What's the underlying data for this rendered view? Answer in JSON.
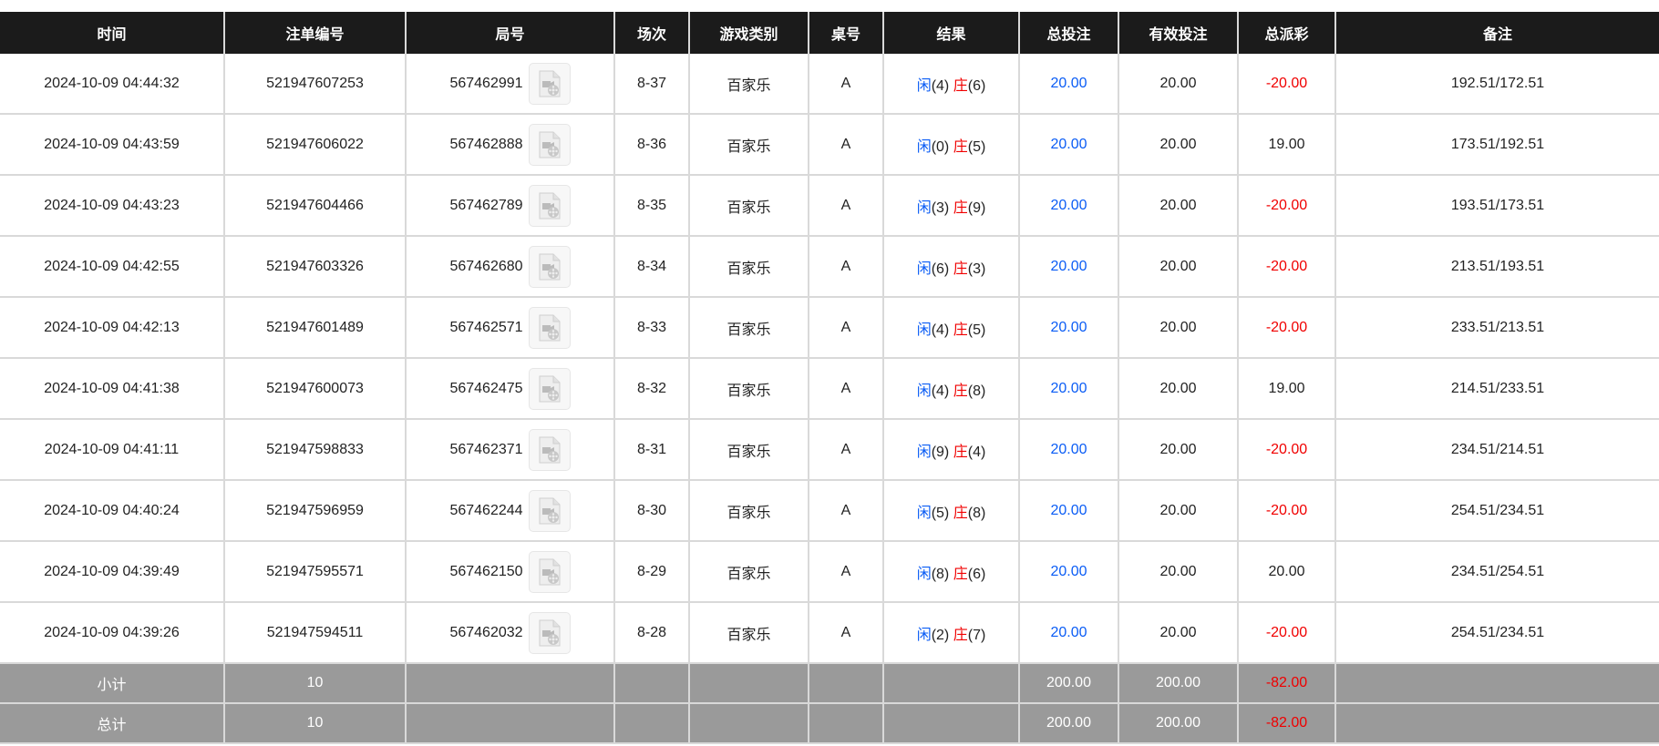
{
  "headers": [
    "时间",
    "注单编号",
    "局号",
    "场次",
    "游戏类别",
    "桌号",
    "结果",
    "总投注",
    "有效投注",
    "总派彩",
    "备注"
  ],
  "colors": {
    "player": "#0a5cf5",
    "banker": "#f00000",
    "negative": "#f00000",
    "header_bg": "#1b1b1b",
    "summary_bg": "#9a9a9a"
  },
  "result_labels": {
    "player": "闲",
    "banker": "庄"
  },
  "rows": [
    {
      "time": "2024-10-09 04:44:32",
      "bet_id": "521947607253",
      "round": "567462991",
      "shoe": "8-37",
      "game": "百家乐",
      "table": "A",
      "player": "(4)",
      "banker": "(6)",
      "total_bet": "20.00",
      "valid_bet": "20.00",
      "payout": "-20.00",
      "payout_negative": true,
      "remark": "192.51/172.51"
    },
    {
      "time": "2024-10-09 04:43:59",
      "bet_id": "521947606022",
      "round": "567462888",
      "shoe": "8-36",
      "game": "百家乐",
      "table": "A",
      "player": "(0)",
      "banker": "(5)",
      "total_bet": "20.00",
      "valid_bet": "20.00",
      "payout": "19.00",
      "payout_negative": false,
      "remark": "173.51/192.51"
    },
    {
      "time": "2024-10-09 04:43:23",
      "bet_id": "521947604466",
      "round": "567462789",
      "shoe": "8-35",
      "game": "百家乐",
      "table": "A",
      "player": "(3)",
      "banker": "(9)",
      "total_bet": "20.00",
      "valid_bet": "20.00",
      "payout": "-20.00",
      "payout_negative": true,
      "remark": "193.51/173.51"
    },
    {
      "time": "2024-10-09 04:42:55",
      "bet_id": "521947603326",
      "round": "567462680",
      "shoe": "8-34",
      "game": "百家乐",
      "table": "A",
      "player": "(6)",
      "banker": "(3)",
      "total_bet": "20.00",
      "valid_bet": "20.00",
      "payout": "-20.00",
      "payout_negative": true,
      "remark": "213.51/193.51"
    },
    {
      "time": "2024-10-09 04:42:13",
      "bet_id": "521947601489",
      "round": "567462571",
      "shoe": "8-33",
      "game": "百家乐",
      "table": "A",
      "player": "(4)",
      "banker": "(5)",
      "total_bet": "20.00",
      "valid_bet": "20.00",
      "payout": "-20.00",
      "payout_negative": true,
      "remark": "233.51/213.51"
    },
    {
      "time": "2024-10-09 04:41:38",
      "bet_id": "521947600073",
      "round": "567462475",
      "shoe": "8-32",
      "game": "百家乐",
      "table": "A",
      "player": "(4)",
      "banker": "(8)",
      "total_bet": "20.00",
      "valid_bet": "20.00",
      "payout": "19.00",
      "payout_negative": false,
      "remark": "214.51/233.51"
    },
    {
      "time": "2024-10-09 04:41:11",
      "bet_id": "521947598833",
      "round": "567462371",
      "shoe": "8-31",
      "game": "百家乐",
      "table": "A",
      "player": "(9)",
      "banker": "(4)",
      "total_bet": "20.00",
      "valid_bet": "20.00",
      "payout": "-20.00",
      "payout_negative": true,
      "remark": "234.51/214.51"
    },
    {
      "time": "2024-10-09 04:40:24",
      "bet_id": "521947596959",
      "round": "567462244",
      "shoe": "8-30",
      "game": "百家乐",
      "table": "A",
      "player": "(5)",
      "banker": "(8)",
      "total_bet": "20.00",
      "valid_bet": "20.00",
      "payout": "-20.00",
      "payout_negative": true,
      "remark": "254.51/234.51"
    },
    {
      "time": "2024-10-09 04:39:49",
      "bet_id": "521947595571",
      "round": "567462150",
      "shoe": "8-29",
      "game": "百家乐",
      "table": "A",
      "player": "(8)",
      "banker": "(6)",
      "total_bet": "20.00",
      "valid_bet": "20.00",
      "payout": "20.00",
      "payout_negative": false,
      "remark": "234.51/254.51"
    },
    {
      "time": "2024-10-09 04:39:26",
      "bet_id": "521947594511",
      "round": "567462032",
      "shoe": "8-28",
      "game": "百家乐",
      "table": "A",
      "player": "(2)",
      "banker": "(7)",
      "total_bet": "20.00",
      "valid_bet": "20.00",
      "payout": "-20.00",
      "payout_negative": true,
      "remark": "254.51/234.51"
    }
  ],
  "summary": [
    {
      "label": "小计",
      "count": "10",
      "total_bet": "200.00",
      "valid_bet": "200.00",
      "payout": "-82.00"
    },
    {
      "label": "总计",
      "count": "10",
      "total_bet": "200.00",
      "valid_bet": "200.00",
      "payout": "-82.00"
    }
  ],
  "icons": {
    "replay": "video-file-icon"
  }
}
